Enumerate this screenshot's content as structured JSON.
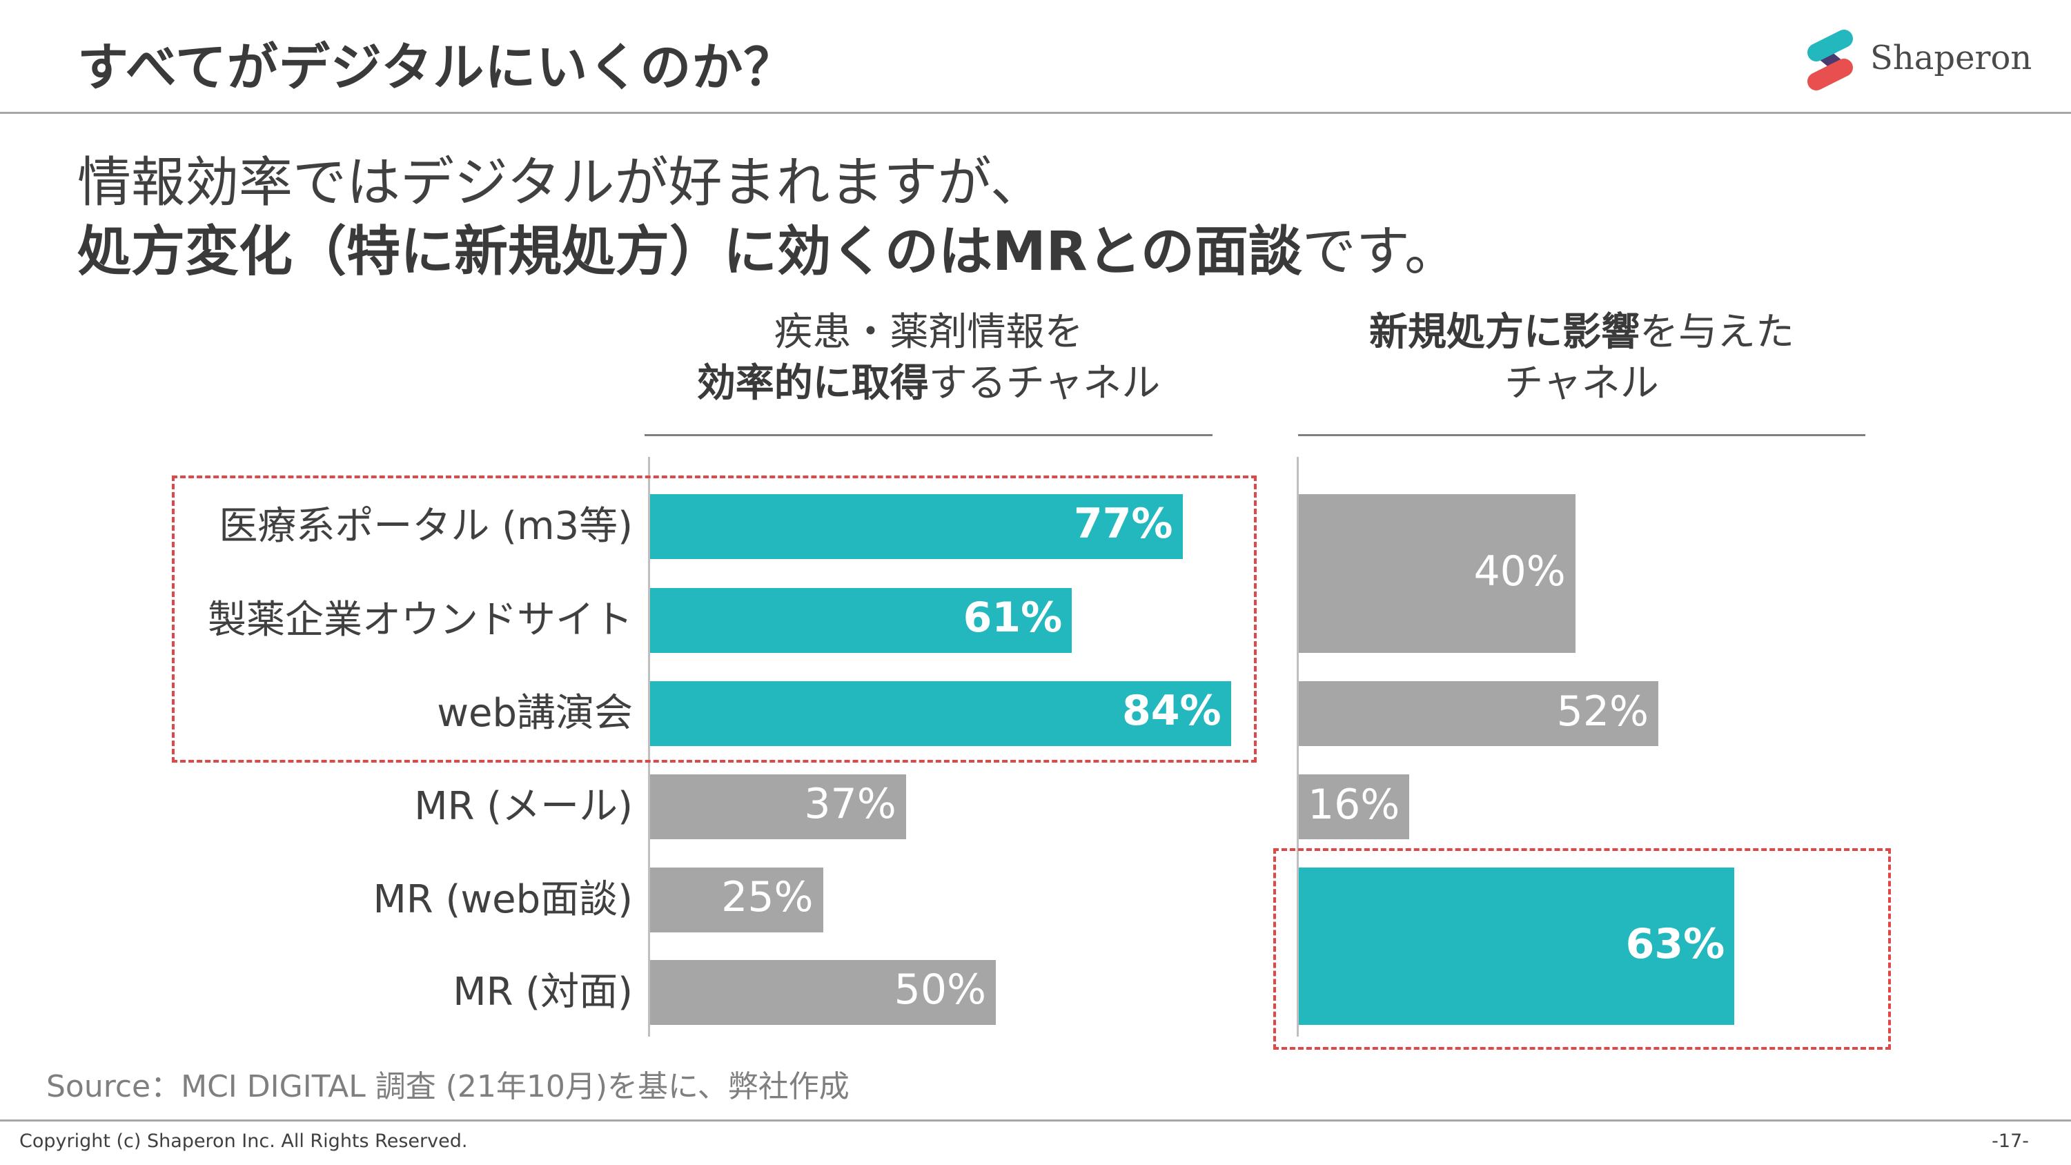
{
  "header": {
    "title": "すべてがデジタルにいくのか？",
    "logo_text": "Shaperon"
  },
  "subtitle": {
    "line1": "情報効率ではデジタルが好まれますが、",
    "line2_bold": "処方変化（特に新規処方）に効くのはMRとの面談",
    "line2_normal": "です。"
  },
  "colors": {
    "teal": "#22b8bd",
    "gray": "#a6a6a6",
    "highlight_border": "#e04848",
    "logo_teal": "#22b8bd",
    "logo_red": "#e8504f",
    "logo_purple": "#4a3a6e"
  },
  "chart_data": [
    {
      "type": "bar",
      "orientation": "horizontal",
      "title_normal_1": "疾患・薬剤情報を",
      "title_bold": "効率的に取得",
      "title_normal_2": "するチャネル",
      "categories": [
        "医療系ポータル (m3等)",
        "製薬企業オウンドサイト",
        "web講演会",
        "MR (メール)",
        "MR (web面談)",
        "MR (対面)"
      ],
      "values": [
        77,
        61,
        84,
        37,
        25,
        50
      ],
      "labels": [
        "77%",
        "61%",
        "84%",
        "37%",
        "25%",
        "50%"
      ],
      "highlighted": [
        true,
        true,
        true,
        false,
        false,
        false
      ],
      "xlim": [
        0,
        100
      ]
    },
    {
      "type": "bar",
      "orientation": "horizontal",
      "title_bold": "新規処方に影響",
      "title_normal_1": "を与えた",
      "title_normal_2": "チャネル",
      "groups": [
        {
          "categories": [
            "医療系ポータル (m3等)",
            "製薬企業オウンドサイト"
          ],
          "value": 40,
          "label": "40%",
          "highlighted": false
        },
        {
          "categories": [
            "web講演会"
          ],
          "value": 52,
          "label": "52%",
          "highlighted": false
        },
        {
          "categories": [
            "MR (メール)"
          ],
          "value": 16,
          "label": "16%",
          "highlighted": false
        },
        {
          "categories": [
            "MR (web面談)",
            "MR (対面)"
          ],
          "value": 63,
          "label": "63%",
          "highlighted": true
        }
      ],
      "xlim": [
        0,
        100
      ]
    }
  ],
  "source": "Source：MCI DIGITAL 調査 (21年10月)を基に、弊社作成",
  "footer": {
    "copyright": "Copyright (c) Shaperon Inc.  All Rights Reserved.",
    "page": "-17-"
  }
}
